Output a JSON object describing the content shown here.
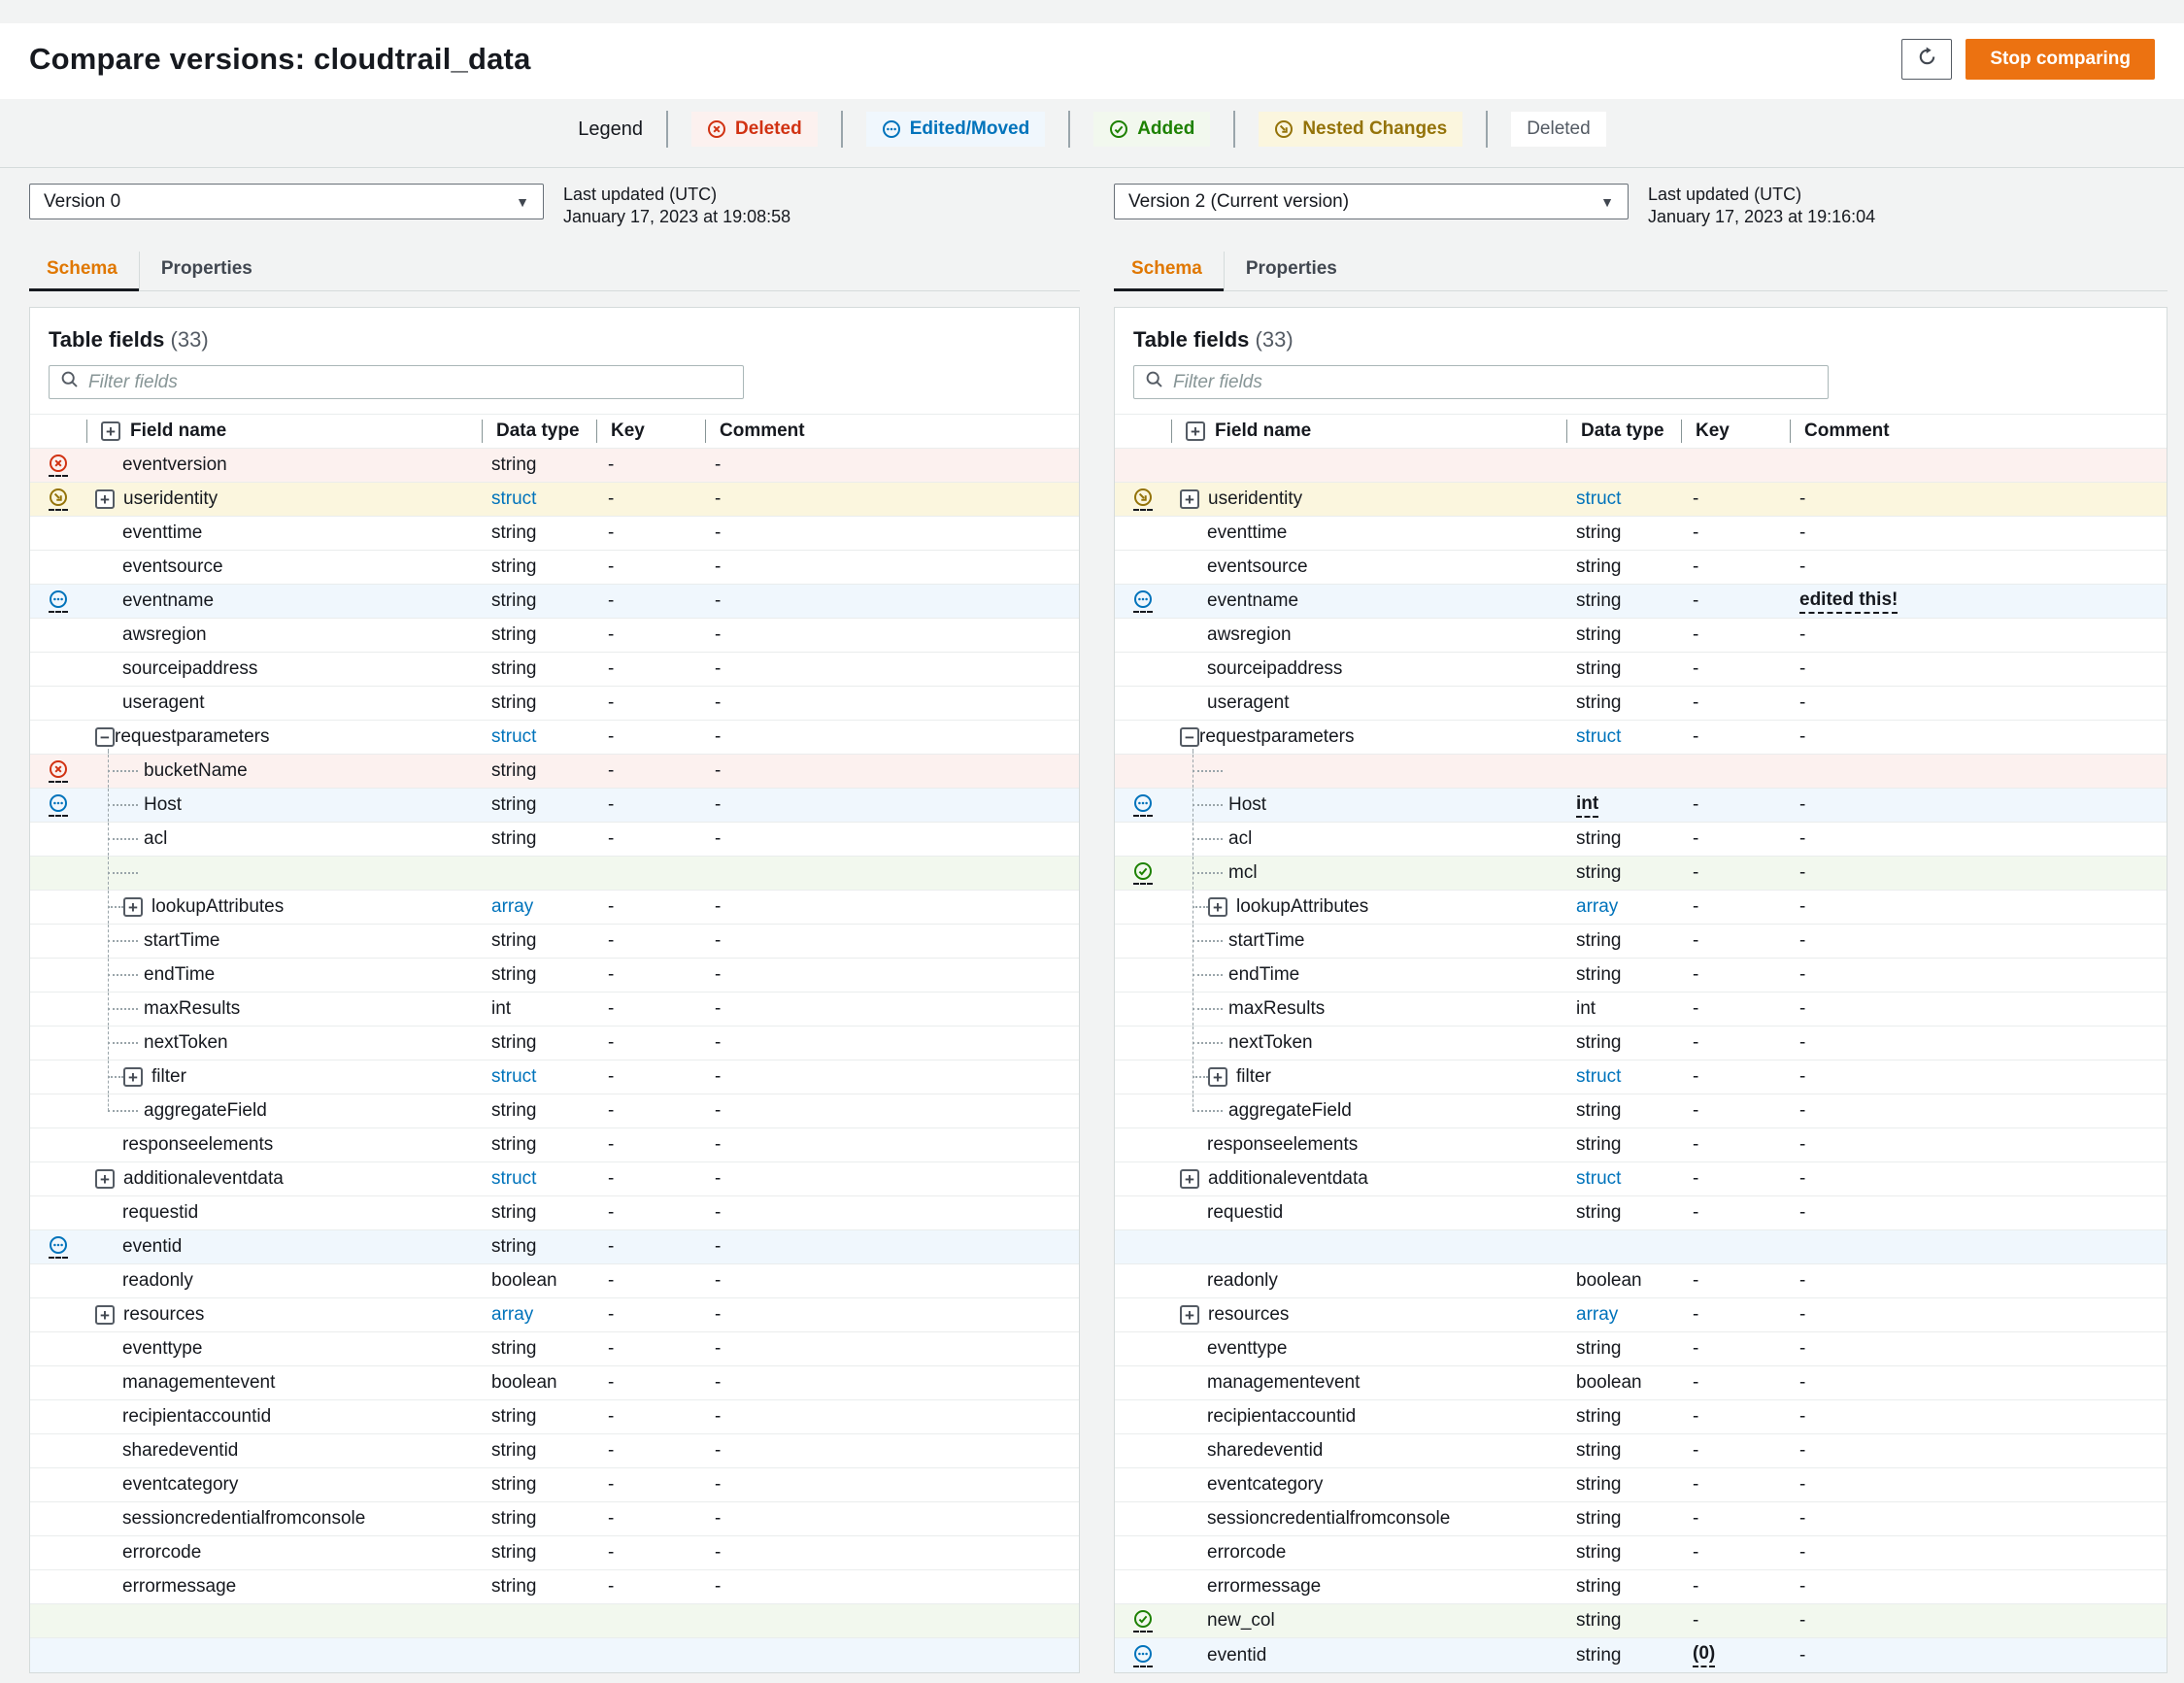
{
  "page": {
    "title": "Compare versions: cloudtrail_data"
  },
  "actions": {
    "refresh_icon": "refresh-icon",
    "stop_comparing": "Stop comparing"
  },
  "legend": {
    "label": "Legend",
    "items": [
      {
        "id": "deleted",
        "icon": "x-circle-icon",
        "label": "Deleted"
      },
      {
        "id": "edited",
        "icon": "dots-circle-icon",
        "label": "Edited/Moved"
      },
      {
        "id": "added",
        "icon": "check-circle-icon",
        "label": "Added"
      },
      {
        "id": "nested",
        "icon": "arrow-nested-circle-icon",
        "label": "Nested Changes"
      },
      {
        "id": "plain",
        "icon": "",
        "label": "Deleted"
      }
    ]
  },
  "colors": {
    "accent_orange": "#ec7211",
    "deleted_red": "#d13212",
    "edited_blue": "#0073bb",
    "added_green": "#1d8102",
    "nested_gold": "#947309"
  },
  "panels": [
    {
      "version": "Version 0",
      "updated_label": "Last updated (UTC)",
      "updated_value": "January 17, 2023 at 19:08:58",
      "tabs": [
        "Schema",
        "Properties"
      ],
      "table": {
        "title": "Table fields",
        "count": "(33)",
        "filter_placeholder": "Filter fields",
        "columns": [
          "Field name",
          "Data type",
          "Key",
          "Comment"
        ],
        "rows": [
          {
            "name": "eventversion",
            "type": "string",
            "key": "-",
            "comment": "-",
            "status": "deleted"
          },
          {
            "name": "useridentity",
            "type": "struct",
            "typeLink": true,
            "key": "-",
            "comment": "-",
            "status": "nested",
            "toggle": "+"
          },
          {
            "name": "eventtime",
            "type": "string",
            "key": "-",
            "comment": "-"
          },
          {
            "name": "eventsource",
            "type": "string",
            "key": "-",
            "comment": "-"
          },
          {
            "name": "eventname",
            "type": "string",
            "key": "-",
            "comment": "-",
            "status": "edited"
          },
          {
            "name": "awsregion",
            "type": "string",
            "key": "-",
            "comment": "-"
          },
          {
            "name": "sourceipaddress",
            "type": "string",
            "key": "-",
            "comment": "-"
          },
          {
            "name": "useragent",
            "type": "string",
            "key": "-",
            "comment": "-"
          },
          {
            "name": "requestparameters",
            "type": "struct",
            "typeLink": true,
            "key": "-",
            "comment": "-",
            "toggle": "-"
          },
          {
            "name": "bucketName",
            "type": "string",
            "key": "-",
            "comment": "-",
            "status": "deleted",
            "level": 2
          },
          {
            "name": "Host",
            "type": "string",
            "key": "-",
            "comment": "-",
            "status": "edited",
            "level": 2
          },
          {
            "name": "acl",
            "type": "string",
            "key": "-",
            "comment": "-",
            "level": 2
          },
          {
            "empty": true,
            "status": "added",
            "level": 2
          },
          {
            "name": "lookupAttributes",
            "type": "array",
            "typeLink": true,
            "key": "-",
            "comment": "-",
            "level": 2,
            "toggle": "+"
          },
          {
            "name": "startTime",
            "type": "string",
            "key": "-",
            "comment": "-",
            "level": 2
          },
          {
            "name": "endTime",
            "type": "string",
            "key": "-",
            "comment": "-",
            "level": 2
          },
          {
            "name": "maxResults",
            "type": "int",
            "key": "-",
            "comment": "-",
            "level": 2
          },
          {
            "name": "nextToken",
            "type": "string",
            "key": "-",
            "comment": "-",
            "level": 2
          },
          {
            "name": "filter",
            "type": "struct",
            "typeLink": true,
            "key": "-",
            "comment": "-",
            "level": 2,
            "toggle": "+"
          },
          {
            "name": "aggregateField",
            "type": "string",
            "key": "-",
            "comment": "-",
            "level": 2,
            "last": true
          },
          {
            "name": "responseelements",
            "type": "string",
            "key": "-",
            "comment": "-"
          },
          {
            "name": "additionaleventdata",
            "type": "struct",
            "typeLink": true,
            "key": "-",
            "comment": "-",
            "toggle": "+"
          },
          {
            "name": "requestid",
            "type": "string",
            "key": "-",
            "comment": "-"
          },
          {
            "name": "eventid",
            "type": "string",
            "key": "-",
            "comment": "-",
            "status": "edited"
          },
          {
            "name": "readonly",
            "type": "boolean",
            "key": "-",
            "comment": "-"
          },
          {
            "name": "resources",
            "type": "array",
            "typeLink": true,
            "key": "-",
            "comment": "-",
            "toggle": "+"
          },
          {
            "name": "eventtype",
            "type": "string",
            "key": "-",
            "comment": "-"
          },
          {
            "name": "managementevent",
            "type": "boolean",
            "key": "-",
            "comment": "-"
          },
          {
            "name": "recipientaccountid",
            "type": "string",
            "key": "-",
            "comment": "-"
          },
          {
            "name": "sharedeventid",
            "type": "string",
            "key": "-",
            "comment": "-"
          },
          {
            "name": "eventcategory",
            "type": "string",
            "key": "-",
            "comment": "-"
          },
          {
            "name": "sessioncredentialfromconsole",
            "type": "string",
            "key": "-",
            "comment": "-"
          },
          {
            "name": "errorcode",
            "type": "string",
            "key": "-",
            "comment": "-"
          },
          {
            "name": "errormessage",
            "type": "string",
            "key": "-",
            "comment": "-"
          },
          {
            "empty": true,
            "status": "added"
          },
          {
            "empty": true,
            "status": "edited"
          }
        ]
      }
    },
    {
      "version": "Version 2 (Current version)",
      "updated_label": "Last updated (UTC)",
      "updated_value": "January 17, 2023 at 19:16:04",
      "tabs": [
        "Schema",
        "Properties"
      ],
      "table": {
        "title": "Table fields",
        "count": "(33)",
        "filter_placeholder": "Filter fields",
        "columns": [
          "Field name",
          "Data type",
          "Key",
          "Comment"
        ],
        "rows": [
          {
            "empty": true,
            "status": "deleted"
          },
          {
            "name": "useridentity",
            "type": "struct",
            "typeLink": true,
            "key": "-",
            "comment": "-",
            "status": "nested",
            "toggle": "+"
          },
          {
            "name": "eventtime",
            "type": "string",
            "key": "-",
            "comment": "-"
          },
          {
            "name": "eventsource",
            "type": "string",
            "key": "-",
            "comment": "-"
          },
          {
            "name": "eventname",
            "type": "string",
            "key": "-",
            "comment": "edited this!",
            "commentEm": true,
            "status": "edited"
          },
          {
            "name": "awsregion",
            "type": "string",
            "key": "-",
            "comment": "-"
          },
          {
            "name": "sourceipaddress",
            "type": "string",
            "key": "-",
            "comment": "-"
          },
          {
            "name": "useragent",
            "type": "string",
            "key": "-",
            "comment": "-"
          },
          {
            "name": "requestparameters",
            "type": "struct",
            "typeLink": true,
            "key": "-",
            "comment": "-",
            "toggle": "-"
          },
          {
            "empty": true,
            "status": "deleted",
            "level": 2
          },
          {
            "name": "Host",
            "type": "int",
            "typeEm": true,
            "key": "-",
            "comment": "-",
            "status": "edited",
            "level": 2
          },
          {
            "name": "acl",
            "type": "string",
            "key": "-",
            "comment": "-",
            "level": 2
          },
          {
            "name": "mcl",
            "type": "string",
            "key": "-",
            "comment": "-",
            "status": "added",
            "level": 2
          },
          {
            "name": "lookupAttributes",
            "type": "array",
            "typeLink": true,
            "key": "-",
            "comment": "-",
            "level": 2,
            "toggle": "+"
          },
          {
            "name": "startTime",
            "type": "string",
            "key": "-",
            "comment": "-",
            "level": 2
          },
          {
            "name": "endTime",
            "type": "string",
            "key": "-",
            "comment": "-",
            "level": 2
          },
          {
            "name": "maxResults",
            "type": "int",
            "key": "-",
            "comment": "-",
            "level": 2
          },
          {
            "name": "nextToken",
            "type": "string",
            "key": "-",
            "comment": "-",
            "level": 2
          },
          {
            "name": "filter",
            "type": "struct",
            "typeLink": true,
            "key": "-",
            "comment": "-",
            "level": 2,
            "toggle": "+"
          },
          {
            "name": "aggregateField",
            "type": "string",
            "key": "-",
            "comment": "-",
            "level": 2,
            "last": true
          },
          {
            "name": "responseelements",
            "type": "string",
            "key": "-",
            "comment": "-"
          },
          {
            "name": "additionaleventdata",
            "type": "struct",
            "typeLink": true,
            "key": "-",
            "comment": "-",
            "toggle": "+"
          },
          {
            "name": "requestid",
            "type": "string",
            "key": "-",
            "comment": "-"
          },
          {
            "empty": true,
            "status": "edited"
          },
          {
            "name": "readonly",
            "type": "boolean",
            "key": "-",
            "comment": "-"
          },
          {
            "name": "resources",
            "type": "array",
            "typeLink": true,
            "key": "-",
            "comment": "-",
            "toggle": "+"
          },
          {
            "name": "eventtype",
            "type": "string",
            "key": "-",
            "comment": "-"
          },
          {
            "name": "managementevent",
            "type": "boolean",
            "key": "-",
            "comment": "-"
          },
          {
            "name": "recipientaccountid",
            "type": "string",
            "key": "-",
            "comment": "-"
          },
          {
            "name": "sharedeventid",
            "type": "string",
            "key": "-",
            "comment": "-"
          },
          {
            "name": "eventcategory",
            "type": "string",
            "key": "-",
            "comment": "-"
          },
          {
            "name": "sessioncredentialfromconsole",
            "type": "string",
            "key": "-",
            "comment": "-"
          },
          {
            "name": "errorcode",
            "type": "string",
            "key": "-",
            "comment": "-"
          },
          {
            "name": "errormessage",
            "type": "string",
            "key": "-",
            "comment": "-"
          },
          {
            "name": "new_col",
            "type": "string",
            "key": "-",
            "comment": "-",
            "status": "added"
          },
          {
            "name": "eventid",
            "type": "string",
            "key": "(0)",
            "keyEm": true,
            "comment": "-",
            "status": "edited"
          }
        ]
      }
    }
  ]
}
